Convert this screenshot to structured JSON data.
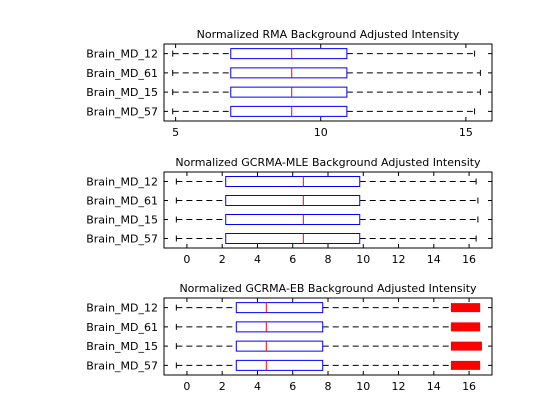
{
  "chart_data": [
    {
      "type": "boxplot",
      "title": "Normalized RMA Background Adjusted Intensity",
      "orientation": "horizontal",
      "xlim": [
        4.6,
        15.9
      ],
      "xticks": [
        5,
        10,
        15
      ],
      "categories": [
        "Brain_MD_57",
        "Brain_MD_15",
        "Brain_MD_61",
        "Brain_MD_12"
      ],
      "boxes": [
        {
          "name": "Brain_MD_57",
          "whisker_low": 4.9,
          "q1": 6.9,
          "median": 9.0,
          "q3": 10.9,
          "whisker_high": 15.3
        },
        {
          "name": "Brain_MD_15",
          "whisker_low": 4.9,
          "q1": 6.9,
          "median": 9.0,
          "q3": 10.9,
          "whisker_high": 15.5
        },
        {
          "name": "Brain_MD_61",
          "whisker_low": 4.9,
          "q1": 6.9,
          "median": 9.0,
          "q3": 10.9,
          "whisker_high": 15.5
        },
        {
          "name": "Brain_MD_12",
          "whisker_low": 4.9,
          "q1": 6.9,
          "median": 9.0,
          "q3": 10.9,
          "whisker_high": 15.3
        }
      ],
      "outliers": []
    },
    {
      "type": "boxplot",
      "title": "Normalized GCRMA-MLE Background Adjusted Intensity",
      "orientation": "horizontal",
      "xlim": [
        -1.3,
        17.3
      ],
      "xticks": [
        0,
        2,
        4,
        6,
        8,
        10,
        12,
        14,
        16
      ],
      "categories": [
        "Brain_MD_57",
        "Brain_MD_15",
        "Brain_MD_61",
        "Brain_MD_12"
      ],
      "boxes": [
        {
          "name": "Brain_MD_57",
          "whisker_low": -0.6,
          "q1": 2.2,
          "median": 6.6,
          "q3": 9.8,
          "whisker_high": 16.4
        },
        {
          "name": "Brain_MD_15",
          "whisker_low": -0.6,
          "q1": 2.2,
          "median": 6.6,
          "q3": 9.8,
          "whisker_high": 16.5
        },
        {
          "name": "Brain_MD_61",
          "whisker_low": -0.6,
          "q1": 2.2,
          "median": 6.6,
          "q3": 9.8,
          "whisker_high": 16.5
        },
        {
          "name": "Brain_MD_12",
          "whisker_low": -0.6,
          "q1": 2.2,
          "median": 6.6,
          "q3": 9.8,
          "whisker_high": 16.4
        }
      ],
      "outliers": []
    },
    {
      "type": "boxplot",
      "title": "Normalized GCRMA-EB Background Adjusted Intensity",
      "orientation": "horizontal",
      "xlim": [
        -1.3,
        17.3
      ],
      "xticks": [
        0,
        2,
        4,
        6,
        8,
        10,
        12,
        14,
        16
      ],
      "categories": [
        "Brain_MD_57",
        "Brain_MD_15",
        "Brain_MD_61",
        "Brain_MD_12"
      ],
      "boxes": [
        {
          "name": "Brain_MD_57",
          "whisker_low": -0.6,
          "q1": 2.8,
          "median": 4.5,
          "q3": 7.7,
          "whisker_high": 15.0
        },
        {
          "name": "Brain_MD_15",
          "whisker_low": -0.6,
          "q1": 2.8,
          "median": 4.5,
          "q3": 7.7,
          "whisker_high": 15.0
        },
        {
          "name": "Brain_MD_61",
          "whisker_low": -0.6,
          "q1": 2.8,
          "median": 4.5,
          "q3": 7.7,
          "whisker_high": 15.0
        },
        {
          "name": "Brain_MD_12",
          "whisker_low": -0.6,
          "q1": 2.8,
          "median": 4.5,
          "q3": 7.7,
          "whisker_high": 15.0
        }
      ],
      "outliers": [
        {
          "name": "Brain_MD_57",
          "range": [
            15.0,
            16.6
          ]
        },
        {
          "name": "Brain_MD_15",
          "range": [
            15.0,
            16.7
          ]
        },
        {
          "name": "Brain_MD_61",
          "range": [
            15.0,
            16.6
          ]
        },
        {
          "name": "Brain_MD_12",
          "range": [
            15.0,
            16.6
          ]
        }
      ]
    }
  ],
  "colors": {
    "box": "#0000ff",
    "median": "#ff0000",
    "whisker": "#000000",
    "outlier": "#ff0000",
    "axes": "#000000",
    "background": "#ffffff"
  }
}
